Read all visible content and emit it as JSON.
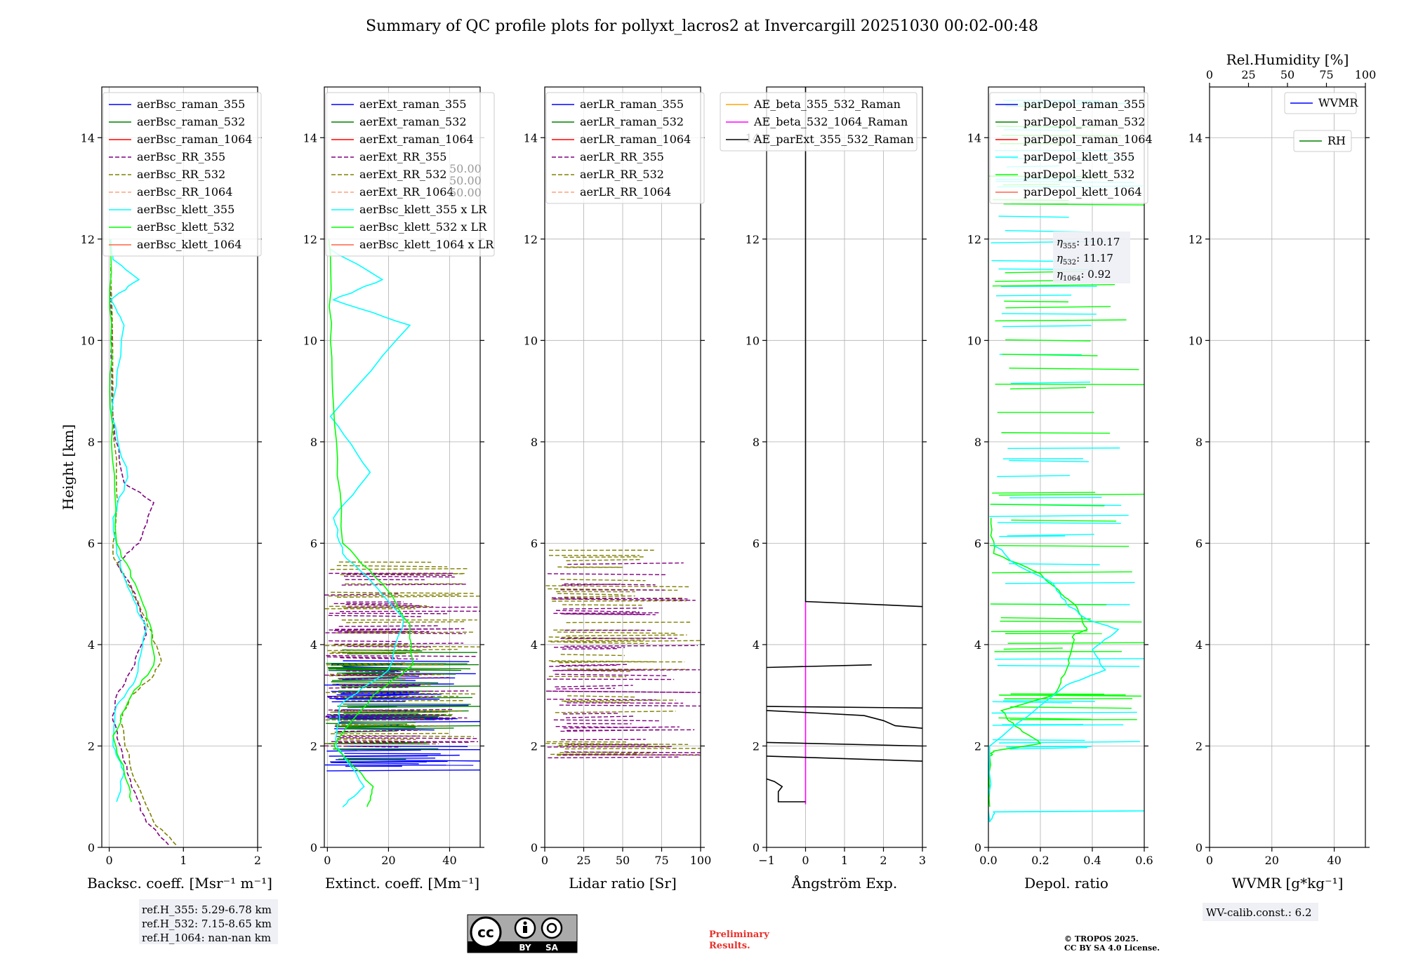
{
  "title": "Summary of QC profile plots for pollyxt_lacros2 at Invercargill 20251030 00:02-00:48",
  "ref_box": [
    "ref.H_355: 5.29-6.78 km",
    "ref.H_532: 7.15-8.65 km",
    "ref.H_1064: nan-nan km"
  ],
  "wv_calib": "WV-calib.const.: 6.2",
  "preliminary": [
    "Preliminary",
    "Results."
  ],
  "copyright": [
    "© TROPOS 2025.",
    "CC BY SA 4.0 License."
  ],
  "license_badge": {
    "cc": "cc",
    "by": "BY",
    "sa": "SA"
  },
  "colors": {
    "raman_355": "#0000ff",
    "raman_532": "#008000",
    "raman_1064": "#ff0000",
    "rr_355": "#800080",
    "rr_532": "#808000",
    "rr_1064": "#ffa07a",
    "klett_355": "#00ffff",
    "klett_532": "#00ff00",
    "klett_1064": "#ff6347",
    "ae1": "#ffa500",
    "ae2": "#ff00ff",
    "ae3": "#000000"
  },
  "chart_data": [
    {
      "type": "line",
      "xlabel": "Backsc. coeff. [Msr⁻¹ m⁻¹]",
      "ylabel": "Height [km]",
      "xlim": [
        -0.1,
        2
      ],
      "ylim": [
        0,
        15
      ],
      "xticks": [
        0,
        1,
        2
      ],
      "yticks": [
        0,
        2,
        4,
        6,
        8,
        10,
        12,
        14
      ],
      "legend": [
        "aerBsc_raman_355",
        "aerBsc_raman_532",
        "aerBsc_raman_1064",
        "aerBsc_RR_355",
        "aerBsc_RR_532",
        "aerBsc_RR_1064",
        "aerBsc_klett_355",
        "aerBsc_klett_532",
        "aerBsc_klett_1064"
      ],
      "series": [
        {
          "name": "aerBsc_RR_355",
          "x": [
            0.8,
            0.5,
            0.3,
            0.15,
            0.05,
            0.1,
            0.3,
            0.5,
            0.35,
            0.1,
            0.4,
            0.6,
            0.2,
            0.05,
            0.02
          ],
          "y": [
            0.05,
            0.5,
            1.2,
            2.0,
            2.5,
            3.0,
            3.5,
            4.2,
            5.0,
            5.6,
            6.0,
            6.8,
            7.2,
            8.5,
            11.0
          ]
        },
        {
          "name": "aerBsc_RR_532",
          "x": [
            0.9,
            0.6,
            0.3,
            0.15,
            0.3,
            0.6,
            0.7,
            0.5,
            0.25,
            0.05,
            0.1,
            0.05,
            0.02
          ],
          "y": [
            0.05,
            0.5,
            1.5,
            2.5,
            3.0,
            3.4,
            3.7,
            4.5,
            5.2,
            5.8,
            7.0,
            9.0,
            11.5
          ]
        },
        {
          "name": "aerBsc_klett_355",
          "x": [
            0.1,
            0.2,
            0.05,
            0.1,
            0.35,
            0.5,
            0.3,
            0.1,
            0.05,
            0.25,
            0.03,
            0.2,
            0.02,
            0.4,
            0.05,
            0.02
          ],
          "y": [
            0.9,
            1.5,
            2.0,
            2.8,
            3.3,
            4.3,
            5.0,
            5.8,
            6.5,
            7.3,
            8.5,
            10.3,
            10.8,
            11.2,
            11.6,
            12.0
          ]
        },
        {
          "name": "aerBsc_klett_532",
          "x": [
            0.3,
            0.2,
            0.05,
            0.3,
            0.6,
            0.55,
            0.35,
            0.1,
            0.03,
            0.02,
            0.01
          ],
          "y": [
            0.9,
            1.5,
            2.2,
            3.0,
            3.6,
            4.4,
            5.2,
            6.0,
            8.0,
            10.0,
            12.0
          ]
        }
      ]
    },
    {
      "type": "line",
      "xlabel": "Extinct. coeff. [Mm⁻¹]",
      "xlim": [
        -1,
        50
      ],
      "ylim": [
        0,
        15
      ],
      "xticks": [
        0,
        20,
        40
      ],
      "yticks": [
        0,
        2,
        4,
        6,
        8,
        10,
        12,
        14
      ],
      "legend": [
        "aerExt_raman_355",
        "aerExt_raman_532",
        "aerExt_raman_1064",
        "aerExt_RR_355",
        "aerExt_RR_532",
        "aerExt_RR_1064",
        "aerBsc_klett_355 x LR",
        "aerBsc_klett_532 x LR",
        "aerBsc_klett_1064 x LR"
      ],
      "lr_values": [
        "50.00",
        "50.00",
        "50.00"
      ],
      "series": [
        {
          "name": "aerBsc_klett_355 x LR",
          "x": [
            5,
            12,
            3,
            4,
            20,
            25,
            15,
            5,
            2,
            14,
            1,
            27,
            2,
            18,
            1
          ],
          "y": [
            0.8,
            1.2,
            2.0,
            2.8,
            3.5,
            4.5,
            5.2,
            5.8,
            6.5,
            7.4,
            8.5,
            10.3,
            10.8,
            11.2,
            11.8
          ]
        },
        {
          "name": "aerBsc_klett_532 x LR",
          "x": [
            13,
            15,
            2,
            15,
            28,
            27,
            18,
            5,
            3,
            1,
            0.5
          ],
          "y": [
            0.8,
            1.2,
            2.0,
            3.0,
            3.6,
            4.4,
            5.2,
            6.0,
            8.0,
            10.0,
            12.0
          ]
        }
      ],
      "spike_bands": [
        {
          "name": "aerExt_raman_355",
          "ylim": [
            1.5,
            3.7
          ]
        },
        {
          "name": "aerExt_raman_532",
          "ylim": [
            1.7,
            3.9
          ]
        },
        {
          "name": "aerExt_RR_532",
          "ylim": [
            2.0,
            5.8
          ]
        },
        {
          "name": "aerExt_RR_355",
          "ylim": [
            2.0,
            5.5
          ]
        }
      ]
    },
    {
      "type": "line",
      "xlabel": "Lidar ratio [Sr]",
      "xlim": [
        0,
        100
      ],
      "ylim": [
        0,
        15
      ],
      "xticks": [
        0,
        25,
        50,
        75,
        100
      ],
      "yticks": [
        0,
        2,
        4,
        6,
        8,
        10,
        12,
        14
      ],
      "legend": [
        "aerLR_raman_355",
        "aerLR_raman_532",
        "aerLR_raman_1064",
        "aerLR_RR_355",
        "aerLR_RR_532",
        "aerLR_RR_1064"
      ],
      "spike_bands": [
        {
          "name": "aerLR_RR_532",
          "ylim": [
            1.8,
            6.1
          ]
        },
        {
          "name": "aerLR_RR_355",
          "ylim": [
            1.7,
            5.6
          ]
        }
      ]
    },
    {
      "type": "line",
      "xlabel": "Ångström Exp.",
      "xlim": [
        -1,
        3
      ],
      "ylim": [
        0,
        15
      ],
      "xticks": [
        -1,
        0,
        1,
        2,
        3
      ],
      "yticks": [
        0,
        2,
        4,
        6,
        8,
        10,
        12,
        14
      ],
      "legend": [
        "AE_beta_355_532_Raman",
        "AE_beta_532_1064_Raman",
        "AE_parExt_355_532_Raman"
      ],
      "series": [
        {
          "name": "AE_beta_532_1064_Raman",
          "x": [
            0,
            0
          ],
          "y": [
            0.85,
            4.85
          ]
        },
        {
          "name": "AE_parExt_355_532_Raman",
          "x": [
            0,
            0,
            3.0
          ],
          "y": [
            15,
            4.85,
            4.75
          ]
        },
        {
          "name": "AE_parExt_355_532_Raman",
          "x": [
            -1,
            1.7
          ],
          "y": [
            3.55,
            3.6
          ]
        },
        {
          "name": "AE_parExt_355_532_Raman",
          "x": [
            -1,
            3.0
          ],
          "y": [
            2.78,
            2.75
          ]
        },
        {
          "name": "AE_parExt_355_532_Raman",
          "x": [
            -1,
            0.3,
            1.5,
            2.0,
            2.3,
            3.0
          ],
          "y": [
            2.7,
            2.65,
            2.6,
            2.5,
            2.4,
            2.35
          ]
        },
        {
          "name": "AE_parExt_355_532_Raman",
          "x": [
            -1,
            3.0
          ],
          "y": [
            2.07,
            2.0
          ]
        },
        {
          "name": "AE_parExt_355_532_Raman",
          "x": [
            -1,
            3.0
          ],
          "y": [
            1.8,
            1.7
          ]
        },
        {
          "name": "AE_parExt_355_532_Raman",
          "x": [
            -1,
            -0.8,
            -0.6,
            -0.7,
            -0.7,
            0
          ],
          "y": [
            1.35,
            1.3,
            1.2,
            1.1,
            0.9,
            0.9
          ]
        }
      ]
    },
    {
      "type": "line",
      "xlabel": "Depol. ratio",
      "xlim": [
        0,
        0.6
      ],
      "ylim": [
        0,
        15
      ],
      "xticks": [
        0.0,
        0.2,
        0.4,
        0.6
      ],
      "xticklabels": [
        "0.0",
        "0.2",
        "0.4",
        "0.6"
      ],
      "yticks": [
        0,
        2,
        4,
        6,
        8,
        10,
        12,
        14
      ],
      "legend": [
        "parDepol_raman_355",
        "parDepol_raman_532",
        "parDepol_raman_1064",
        "parDepol_klett_355",
        "parDepol_klett_532",
        "parDepol_klett_1064"
      ],
      "eta": [
        "110.17",
        "11.17",
        "0.92"
      ],
      "series": [
        {
          "name": "parDepol_klett_532",
          "x": [
            0.005,
            0.005,
            0.02,
            0.2,
            0.1,
            0.05,
            0.25,
            0.3,
            0.32,
            0.33,
            0.38,
            0.36,
            0.33,
            0.28,
            0.2,
            0.02,
            0.01
          ],
          "y": [
            0.8,
            1.8,
            1.9,
            2.05,
            2.4,
            2.7,
            3.0,
            3.5,
            3.9,
            4.2,
            4.3,
            4.5,
            4.8,
            5.0,
            5.4,
            5.8,
            6.5
          ]
        },
        {
          "name": "parDepol_klett_355",
          "x": [
            0.6,
            0.02,
            0.005,
            0.005,
            0.3,
            0.45,
            0.4,
            0.5,
            0.38,
            0.3,
            0.25,
            0.1,
            0.02
          ],
          "y": [
            0.72,
            0.7,
            0.5,
            2.0,
            3.2,
            3.5,
            3.9,
            4.3,
            4.5,
            4.8,
            5.2,
            5.6,
            6.0
          ]
        }
      ],
      "spike_bands": [
        {
          "name": "parDepol_klett_355",
          "ylim": [
            1.9,
            14.8
          ]
        },
        {
          "name": "parDepol_klett_532",
          "ylim": [
            2.5,
            14.8
          ]
        }
      ]
    },
    {
      "type": "line",
      "xlabel": "WVMR [g*kg⁻¹]",
      "x2label": "Rel.Humidity [%]",
      "xlim": [
        0,
        50
      ],
      "x2lim": [
        0,
        100
      ],
      "ylim": [
        0,
        15
      ],
      "xticks": [
        0,
        20,
        40
      ],
      "x2ticks": [
        0,
        25,
        50,
        75,
        100
      ],
      "yticks": [
        0,
        2,
        4,
        6,
        8,
        10,
        12,
        14
      ],
      "legend": [
        "WVMR",
        "RH"
      ],
      "series": []
    }
  ]
}
